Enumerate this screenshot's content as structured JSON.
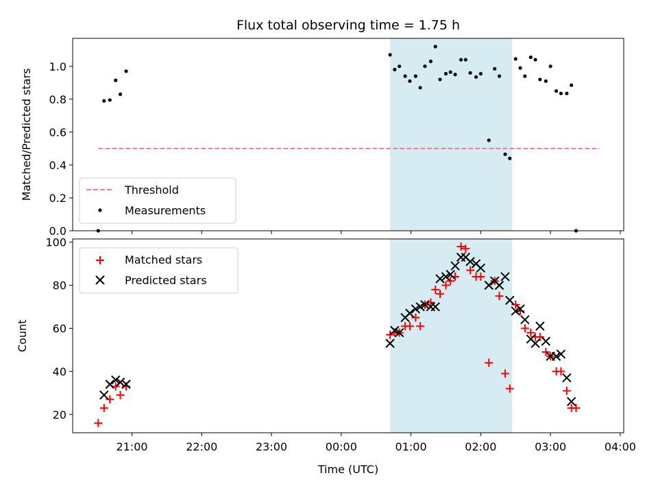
{
  "colors": {
    "threshold": "#f08080",
    "measurement": "#000000",
    "matched": "#ff0000",
    "predicted": "#000000",
    "shade": "#add8e6"
  },
  "chart_data": [
    {
      "type": "scatter",
      "title": "Flux total observing time = 1.75 h",
      "ylabel": "Matched/Predicted stars",
      "ylim": [
        0,
        1.17
      ],
      "yticks": [
        0.0,
        0.2,
        0.4,
        0.6,
        0.8,
        1.0
      ],
      "ytick_labels": [
        "0.0",
        "0.2",
        "0.4",
        "0.6",
        "0.8",
        "1.0"
      ],
      "xlim": [
        "20:07",
        "04:01"
      ],
      "shaded_interval": [
        "00:40",
        "02:25"
      ],
      "legend_position": "lower-left",
      "threshold": {
        "name": "Threshold",
        "value": 0.5,
        "x_start": "20:29",
        "x_end": "03:40"
      },
      "series": [
        {
          "name": "Measurements",
          "points": [
            [
              "20:29",
              0.0
            ],
            [
              "20:34",
              0.79
            ],
            [
              "20:39",
              0.795
            ],
            [
              "20:44",
              0.915
            ],
            [
              "20:48",
              0.83
            ],
            [
              "20:53",
              0.97
            ],
            [
              "00:40",
              1.07
            ],
            [
              "00:44",
              0.98
            ],
            [
              "00:48",
              1.0
            ],
            [
              "00:53",
              0.94
            ],
            [
              "00:57",
              0.91
            ],
            [
              "01:02",
              0.94
            ],
            [
              "01:06",
              0.87
            ],
            [
              "01:10",
              1.0
            ],
            [
              "01:15",
              1.03
            ],
            [
              "01:19",
              1.12
            ],
            [
              "01:23",
              0.92
            ],
            [
              "01:28",
              0.955
            ],
            [
              "01:32",
              0.965
            ],
            [
              "01:36",
              0.95
            ],
            [
              "01:41",
              1.04
            ],
            [
              "01:45",
              1.04
            ],
            [
              "01:49",
              0.96
            ],
            [
              "01:54",
              0.935
            ],
            [
              "01:58",
              0.955
            ],
            [
              "02:05",
              0.55
            ],
            [
              "02:10",
              0.985
            ],
            [
              "02:14",
              0.94
            ],
            [
              "02:19",
              0.465
            ],
            [
              "02:23",
              0.44
            ],
            [
              "02:28",
              1.045
            ],
            [
              "02:32",
              0.99
            ],
            [
              "02:36",
              0.94
            ],
            [
              "02:41",
              1.055
            ],
            [
              "02:45",
              1.04
            ],
            [
              "02:49",
              0.92
            ],
            [
              "02:54",
              0.91
            ],
            [
              "02:58",
              1.0
            ],
            [
              "03:03",
              0.85
            ],
            [
              "03:07",
              0.835
            ],
            [
              "03:12",
              0.835
            ],
            [
              "03:16",
              0.885
            ],
            [
              "03:20",
              0.0
            ]
          ]
        }
      ]
    },
    {
      "type": "scatter",
      "title": "",
      "xlabel": "Time (UTC)",
      "ylabel": "Count",
      "ylim": [
        11.5,
        101.5
      ],
      "yticks": [
        20,
        40,
        60,
        80,
        100
      ],
      "ytick_labels": [
        "20",
        "40",
        "60",
        "80",
        "100"
      ],
      "xlim": [
        "20:07",
        "04:01"
      ],
      "xticks": [
        "20:58",
        "21:58",
        "22:58",
        "23:58",
        "00:58",
        "01:58",
        "02:58",
        "03:58"
      ],
      "xtick_labels": [
        "21:00",
        "22:00",
        "23:00",
        "00:00",
        "01:00",
        "02:00",
        "03:00",
        "04:00"
      ],
      "shaded_interval": [
        "00:40",
        "02:25"
      ],
      "legend_position": "upper-left",
      "series": [
        {
          "name": "Matched stars",
          "marker": "plus",
          "points": [
            [
              "20:29",
              16
            ],
            [
              "20:34",
              23
            ],
            [
              "20:39",
              27
            ],
            [
              "20:44",
              33
            ],
            [
              "20:48",
              29
            ],
            [
              "20:53",
              33
            ],
            [
              "00:40",
              57
            ],
            [
              "00:44",
              58
            ],
            [
              "00:48",
              58
            ],
            [
              "00:53",
              61
            ],
            [
              "00:57",
              61
            ],
            [
              "01:02",
              65
            ],
            [
              "01:06",
              61
            ],
            [
              "01:10",
              71
            ],
            [
              "01:15",
              72
            ],
            [
              "01:19",
              78
            ],
            [
              "01:23",
              76
            ],
            [
              "01:28",
              80
            ],
            [
              "01:32",
              82
            ],
            [
              "01:36",
              84
            ],
            [
              "01:41",
              98
            ],
            [
              "01:45",
              97
            ],
            [
              "01:49",
              87
            ],
            [
              "01:54",
              84
            ],
            [
              "01:58",
              84
            ],
            [
              "02:05",
              44
            ],
            [
              "02:10",
              82
            ],
            [
              "02:14",
              75
            ],
            [
              "02:19",
              39
            ],
            [
              "02:23",
              32
            ],
            [
              "02:28",
              71
            ],
            [
              "02:32",
              68
            ],
            [
              "02:36",
              60
            ],
            [
              "02:41",
              58
            ],
            [
              "02:45",
              56
            ],
            [
              "02:49",
              56
            ],
            [
              "02:54",
              49
            ],
            [
              "02:58",
              47
            ],
            [
              "03:03",
              40
            ],
            [
              "03:07",
              40
            ],
            [
              "03:12",
              31
            ],
            [
              "03:16",
              23
            ],
            [
              "03:20",
              23
            ]
          ]
        },
        {
          "name": "Predicted stars",
          "marker": "x",
          "points": [
            [
              "20:34",
              29
            ],
            [
              "20:39",
              34
            ],
            [
              "20:44",
              36
            ],
            [
              "20:48",
              35
            ],
            [
              "20:53",
              34
            ],
            [
              "00:40",
              53
            ],
            [
              "00:44",
              59
            ],
            [
              "00:48",
              58
            ],
            [
              "00:53",
              65
            ],
            [
              "00:57",
              67
            ],
            [
              "01:02",
              69
            ],
            [
              "01:06",
              70
            ],
            [
              "01:10",
              71
            ],
            [
              "01:15",
              70
            ],
            [
              "01:19",
              70
            ],
            [
              "01:23",
              83
            ],
            [
              "01:28",
              84
            ],
            [
              "01:32",
              85
            ],
            [
              "01:36",
              89
            ],
            [
              "01:41",
              93
            ],
            [
              "01:45",
              93
            ],
            [
              "01:49",
              91
            ],
            [
              "01:54",
              90
            ],
            [
              "01:58",
              88
            ],
            [
              "02:05",
              80
            ],
            [
              "02:10",
              82
            ],
            [
              "02:14",
              80
            ],
            [
              "02:19",
              84
            ],
            [
              "02:23",
              73
            ],
            [
              "02:28",
              68
            ],
            [
              "02:32",
              69
            ],
            [
              "02:36",
              64
            ],
            [
              "02:41",
              55
            ],
            [
              "02:45",
              53
            ],
            [
              "02:49",
              61
            ],
            [
              "02:54",
              54
            ],
            [
              "02:58",
              47
            ],
            [
              "03:03",
              47
            ],
            [
              "03:07",
              48
            ],
            [
              "03:12",
              37
            ],
            [
              "03:16",
              26
            ]
          ]
        }
      ]
    }
  ]
}
